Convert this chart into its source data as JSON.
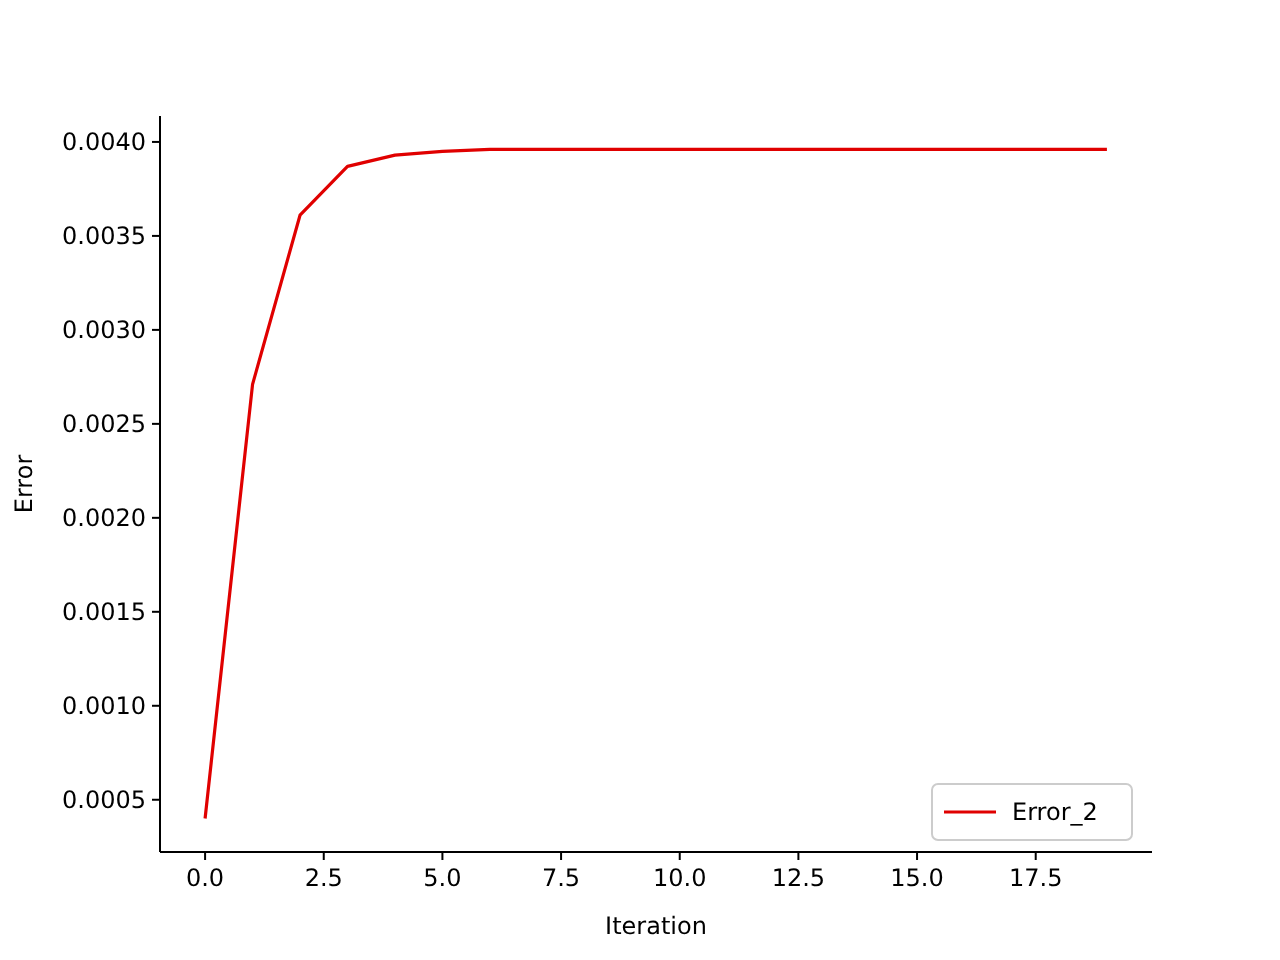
{
  "chart_data": {
    "type": "line",
    "xlabel": "Iteration",
    "ylabel": "Error",
    "x": [
      0,
      1,
      2,
      3,
      4,
      5,
      6,
      7,
      8,
      9,
      10,
      11,
      12,
      13,
      14,
      15,
      16,
      17,
      18,
      19
    ],
    "series": [
      {
        "name": "Error_2",
        "color": "#e00000",
        "values": [
          0.0004,
          0.00271,
          0.00361,
          0.00387,
          0.00393,
          0.00395,
          0.00396,
          0.00396,
          0.00396,
          0.00396,
          0.00396,
          0.00396,
          0.00396,
          0.00396,
          0.00396,
          0.00396,
          0.00396,
          0.00396,
          0.00396,
          0.00396
        ]
      }
    ],
    "xlim": [
      -0.95,
      19.95
    ],
    "ylim": [
      0.000222,
      0.004138
    ],
    "xticks": [
      {
        "value": 0,
        "label": "0.0"
      },
      {
        "value": 2.5,
        "label": "2.5"
      },
      {
        "value": 5,
        "label": "5.0"
      },
      {
        "value": 7.5,
        "label": "7.5"
      },
      {
        "value": 10,
        "label": "10.0"
      },
      {
        "value": 12.5,
        "label": "12.5"
      },
      {
        "value": 15,
        "label": "15.0"
      },
      {
        "value": 17.5,
        "label": "17.5"
      }
    ],
    "yticks": [
      {
        "value": 0.0005,
        "label": "0.0005"
      },
      {
        "value": 0.001,
        "label": "0.0010"
      },
      {
        "value": 0.0015,
        "label": "0.0015"
      },
      {
        "value": 0.002,
        "label": "0.0020"
      },
      {
        "value": 0.0025,
        "label": "0.0025"
      },
      {
        "value": 0.003,
        "label": "0.0030"
      },
      {
        "value": 0.0035,
        "label": "0.0035"
      },
      {
        "value": 0.004,
        "label": "0.0040"
      }
    ],
    "grid": false,
    "legend": "bottom right",
    "line_style": "solid",
    "marker": "none"
  }
}
